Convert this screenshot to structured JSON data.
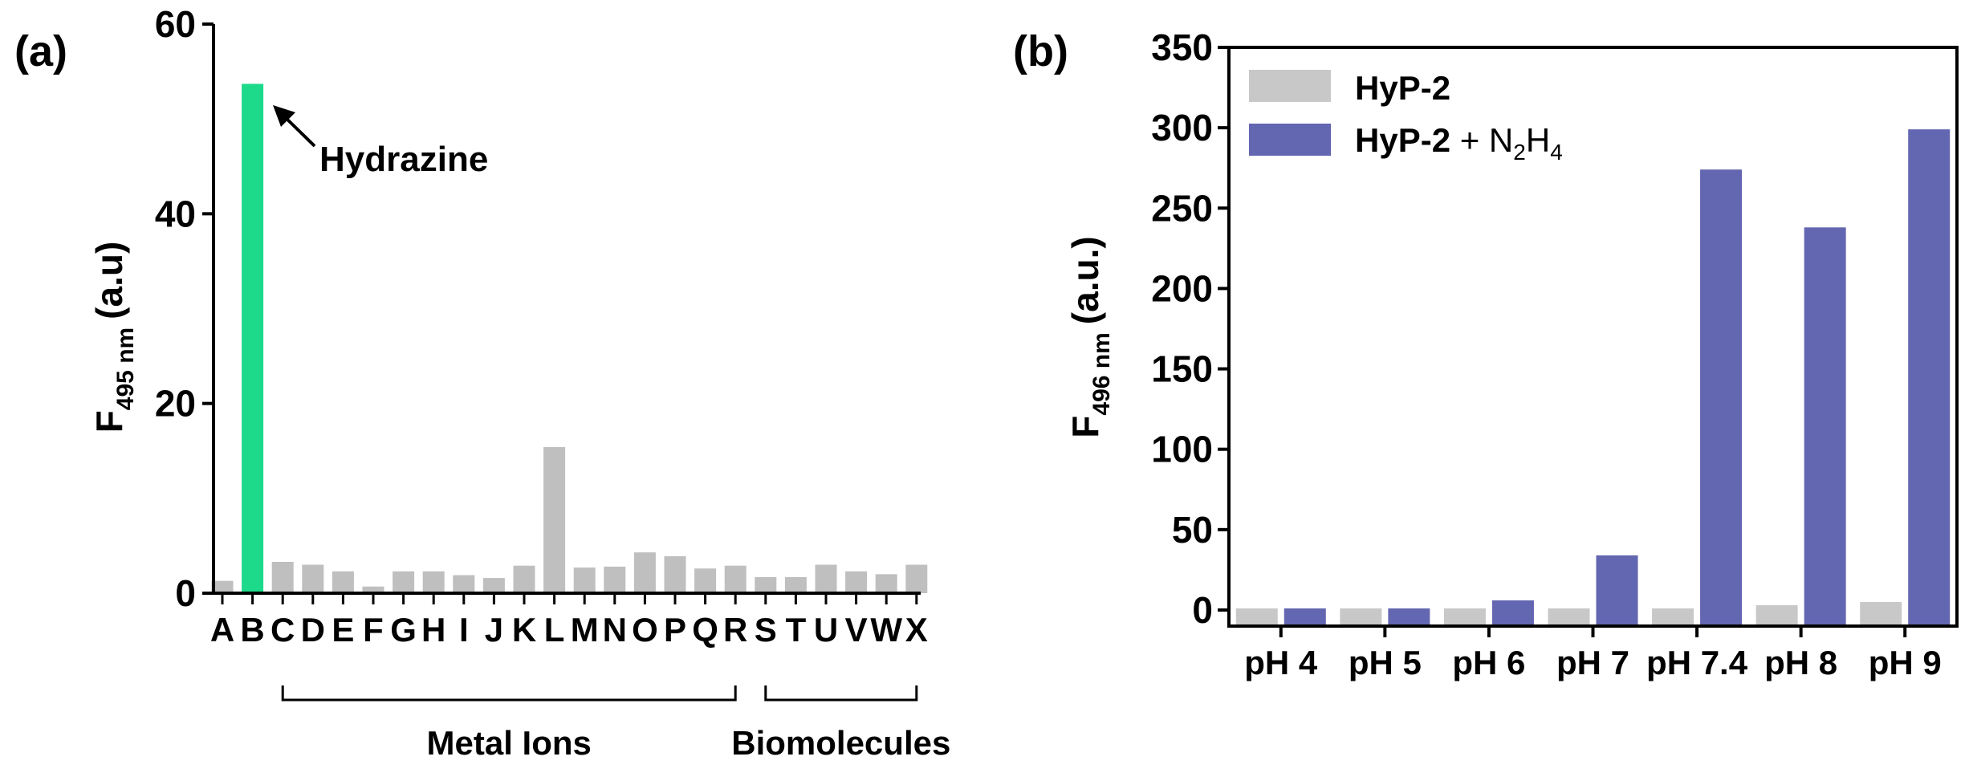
{
  "chart_data": [
    {
      "panel_label": "(a)",
      "type": "bar",
      "categories": [
        "A",
        "B",
        "C",
        "D",
        "E",
        "F",
        "G",
        "H",
        "I",
        "J",
        "K",
        "L",
        "M",
        "N",
        "O",
        "P",
        "Q",
        "R",
        "S",
        "T",
        "U",
        "V",
        "W",
        "X"
      ],
      "values": [
        1.3,
        53.7,
        3.3,
        3.0,
        2.3,
        0.7,
        2.3,
        2.3,
        1.9,
        1.6,
        2.9,
        15.4,
        2.7,
        2.8,
        4.3,
        3.9,
        2.6,
        2.9,
        1.7,
        1.7,
        3.0,
        2.3,
        2.0,
        3.0
      ],
      "bar_colors": [
        "#bfbfbf",
        "#1dd98a",
        "#bfbfbf",
        "#bfbfbf",
        "#bfbfbf",
        "#bfbfbf",
        "#bfbfbf",
        "#bfbfbf",
        "#bfbfbf",
        "#bfbfbf",
        "#bfbfbf",
        "#bfbfbf",
        "#bfbfbf",
        "#bfbfbf",
        "#bfbfbf",
        "#bfbfbf",
        "#bfbfbf",
        "#bfbfbf",
        "#bfbfbf",
        "#bfbfbf",
        "#bfbfbf",
        "#bfbfbf",
        "#bfbfbf",
        "#bfbfbf"
      ],
      "ylabel_main": "F",
      "ylabel_sub": "495 nm",
      "ylabel_unit": "(a.u)",
      "ylim": [
        0,
        60
      ],
      "yticks": [
        "0",
        "20",
        "40",
        "60"
      ],
      "annotation": "Hydrazine",
      "groups": [
        {
          "label": "Metal Ions",
          "from": "C",
          "to": "R"
        },
        {
          "label": "Biomolecules",
          "from": "S",
          "to": "X"
        }
      ]
    },
    {
      "panel_label": "(b)",
      "type": "bar",
      "categories": [
        "pH 4",
        "pH 5",
        "pH 6",
        "pH 7",
        "pH 7.4",
        "pH 8",
        "pH 9"
      ],
      "series": [
        {
          "name": "HyP-2",
          "color": "#c8c8c8",
          "values": [
            1,
            1,
            1,
            1,
            1,
            3,
            5
          ]
        },
        {
          "name": "HyP-2 + N2H4",
          "color": "#6366b0",
          "values": [
            1,
            1,
            6,
            34,
            274,
            238,
            299
          ]
        }
      ],
      "ylabel_main": "F",
      "ylabel_sub": "496 nm",
      "ylabel_unit": "(a.u.)",
      "ylim": [
        -10,
        350
      ],
      "yticks": [
        "0",
        "50",
        "100",
        "150",
        "200",
        "250",
        "300",
        "350"
      ],
      "legend": {
        "items": [
          {
            "bold": "HyP-2",
            "rest": ""
          },
          {
            "bold": "HyP-2",
            "rest": " + N",
            "sub1": "2",
            "mid": "H",
            "sub2": "4"
          }
        ],
        "placement": "top-left"
      }
    }
  ]
}
